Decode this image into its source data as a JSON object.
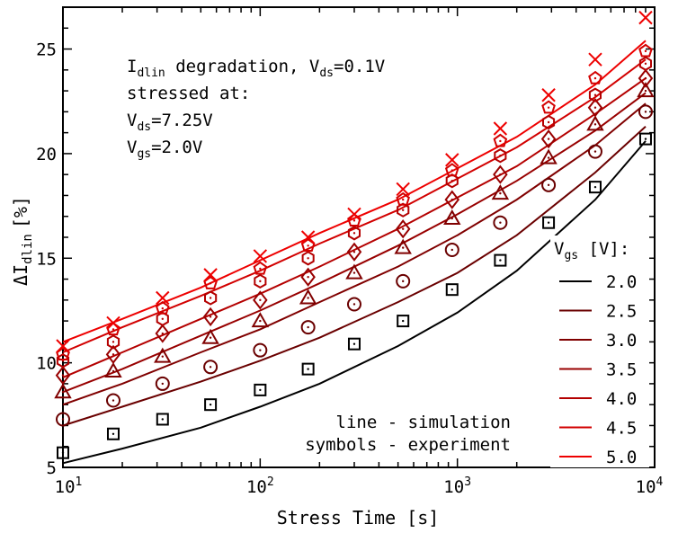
{
  "chart_data": {
    "type": "line",
    "title": "",
    "xlabel": "Stress Time [s]",
    "ylabel": {
      "main": "ΔI",
      "sub": "dlin",
      "unit": "[%]"
    },
    "xscale": "log",
    "xlim": [
      10,
      10000
    ],
    "ylim": [
      5,
      27
    ],
    "x_ticks": [
      {
        "value": 10,
        "base": "10",
        "exp": "1"
      },
      {
        "value": 100,
        "base": "10",
        "exp": "2"
      },
      {
        "value": 1000,
        "base": "10",
        "exp": "3"
      },
      {
        "value": 10000,
        "base": "10",
        "exp": "4"
      }
    ],
    "y_ticks": [
      {
        "value": 5,
        "label": "5"
      },
      {
        "value": 10,
        "label": "10"
      },
      {
        "value": 15,
        "label": "15"
      },
      {
        "value": 20,
        "label": "20"
      },
      {
        "value": 25,
        "label": "25"
      }
    ],
    "grid": false,
    "annotation": {
      "line1": {
        "pre": "I",
        "sub": "dlin",
        "post": " degradation, V",
        "sub2": "ds",
        "post2": "=0.1V"
      },
      "line2": "stressed at:",
      "line3": {
        "pre": "V",
        "sub": "ds",
        "post": "=7.25V"
      },
      "line4": {
        "pre": "V",
        "sub": "gs",
        "post": "=2.0V"
      }
    },
    "legend_title": {
      "pre": "V",
      "sub": "gs",
      "post": " [V]:"
    },
    "legend_placement": "right",
    "notes": [
      "line - simulation",
      "symbols - experiment"
    ],
    "sim_x": [
      10,
      20,
      50,
      100,
      200,
      500,
      1000,
      2000,
      5000,
      9000
    ],
    "exp_x": [
      10,
      18,
      32,
      56,
      100,
      175,
      300,
      530,
      940,
      1650,
      2900,
      5000,
      9000
    ],
    "series": [
      {
        "name": "2.0",
        "color": "#000000",
        "marker": "square",
        "sim": [
          5.2,
          5.9,
          6.9,
          7.9,
          9.0,
          10.8,
          12.4,
          14.4,
          17.8,
          20.6
        ],
        "exp": [
          5.7,
          6.6,
          7.3,
          8.0,
          8.7,
          9.7,
          10.9,
          12.0,
          13.5,
          14.9,
          16.7,
          18.4,
          20.7
        ]
      },
      {
        "name": "2.5",
        "color": "#6a0000",
        "marker": "circle",
        "sim": [
          7.0,
          7.9,
          9.1,
          10.1,
          11.2,
          12.9,
          14.3,
          16.1,
          19.1,
          21.3
        ],
        "exp": [
          7.3,
          8.2,
          9.0,
          9.8,
          10.6,
          11.7,
          12.8,
          13.9,
          15.4,
          16.7,
          18.5,
          20.1,
          22.0
        ]
      },
      {
        "name": "3.0",
        "color": "#800000",
        "marker": "triangle",
        "sim": [
          8.0,
          9.0,
          10.5,
          11.6,
          12.9,
          14.6,
          16.1,
          17.8,
          20.4,
          22.4
        ],
        "exp": [
          8.6,
          9.6,
          10.3,
          11.2,
          12.0,
          13.1,
          14.3,
          15.5,
          16.9,
          18.1,
          19.8,
          21.4,
          23.0
        ]
      },
      {
        "name": "3.5",
        "color": "#980000",
        "marker": "diamond",
        "sim": [
          8.6,
          9.7,
          11.3,
          12.5,
          13.8,
          15.6,
          17.1,
          18.7,
          21.1,
          22.9
        ],
        "exp": [
          9.4,
          10.4,
          11.4,
          12.2,
          13.0,
          14.1,
          15.3,
          16.4,
          17.8,
          19.0,
          20.7,
          22.2,
          23.6
        ]
      },
      {
        "name": "4.0",
        "color": "#b40000",
        "marker": "hexagon",
        "sim": [
          9.3,
          10.5,
          12.1,
          13.3,
          14.6,
          16.4,
          17.9,
          19.4,
          21.9,
          23.6
        ],
        "exp": [
          10.1,
          11.0,
          12.1,
          13.1,
          13.9,
          15.0,
          16.2,
          17.3,
          18.7,
          19.9,
          21.5,
          22.8,
          24.3
        ]
      },
      {
        "name": "4.5",
        "color": "#d20000",
        "marker": "pentagon",
        "sim": [
          10.5,
          11.7,
          13.2,
          14.4,
          15.7,
          17.3,
          18.8,
          20.3,
          22.7,
          24.5
        ],
        "exp": [
          10.4,
          11.6,
          12.6,
          13.8,
          14.5,
          15.6,
          16.8,
          17.8,
          19.2,
          20.6,
          22.2,
          23.6,
          24.9
        ]
      },
      {
        "name": "5.0",
        "color": "#ee0000",
        "marker": "x",
        "sim": [
          11.0,
          12.1,
          13.6,
          14.9,
          16.2,
          17.8,
          19.3,
          20.8,
          23.3,
          25.4
        ],
        "exp": [
          10.8,
          11.9,
          13.1,
          14.2,
          15.1,
          16.0,
          17.1,
          18.3,
          19.7,
          21.2,
          22.8,
          24.5,
          26.5
        ]
      }
    ]
  }
}
